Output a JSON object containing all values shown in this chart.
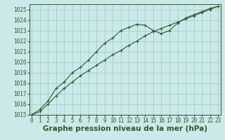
{
  "line1": [
    1015.0,
    1015.5,
    1016.3,
    1017.5,
    1018.1,
    1019.0,
    1019.5,
    1020.2,
    1021.0,
    1021.8,
    1022.3,
    1023.0,
    1023.3,
    1023.6,
    1023.5,
    1023.0,
    1022.7,
    1023.0,
    1023.7,
    1024.2,
    1024.5,
    1024.8,
    1025.1,
    1025.3
  ],
  "line2": [
    1015.0,
    1015.3,
    1016.0,
    1016.8,
    1017.5,
    1018.1,
    1018.7,
    1019.2,
    1019.7,
    1020.2,
    1020.7,
    1021.1,
    1021.6,
    1022.0,
    1022.5,
    1022.9,
    1023.2,
    1023.5,
    1023.8,
    1024.1,
    1024.4,
    1024.7,
    1025.0,
    1025.3
  ],
  "x": [
    0,
    1,
    2,
    3,
    4,
    5,
    6,
    7,
    8,
    9,
    10,
    11,
    12,
    13,
    14,
    15,
    16,
    17,
    18,
    19,
    20,
    21,
    22,
    23
  ],
  "xlim": [
    -0.3,
    23.3
  ],
  "ylim": [
    1015,
    1025.5
  ],
  "yticks": [
    1015,
    1016,
    1017,
    1018,
    1019,
    1020,
    1021,
    1022,
    1023,
    1024,
    1025
  ],
  "xlabel": "Graphe pression niveau de la mer (hPa)",
  "bg_color": "#cce8e8",
  "grid_color": "#9fcfcf",
  "line_color": "#2d5a2d",
  "tick_fontsize": 5.5,
  "xlabel_fontsize": 7.5
}
